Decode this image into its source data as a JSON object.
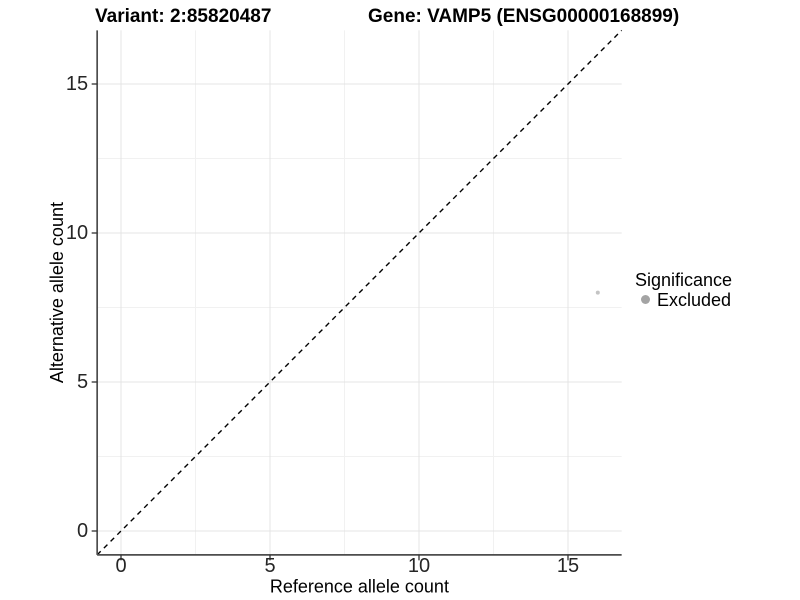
{
  "titles": {
    "variant": "Variant: 2:85820487",
    "gene": "Gene: VAMP5 (ENSG00000168899)"
  },
  "chart_data": {
    "type": "scatter",
    "titles": [
      "Variant: 2:85820487",
      "Gene: VAMP5 (ENSG00000168899)"
    ],
    "xlabel": "Reference allele count",
    "ylabel": "Alternative allele count",
    "xlim": [
      -0.8,
      16.8
    ],
    "ylim": [
      -0.8,
      16.8
    ],
    "x_ticks": [
      0,
      5,
      10,
      15
    ],
    "y_ticks": [
      0,
      5,
      10,
      15
    ],
    "x_minor_ticks": [
      2.5,
      7.5,
      12.5
    ],
    "y_minor_ticks": [
      2.5,
      7.5,
      12.5
    ],
    "grid": "major and minor gridlines on white background",
    "points": [
      {
        "x": 16,
        "y": 8,
        "significance": "Excluded",
        "color": "#c4c4c4",
        "radius": 2
      }
    ],
    "reference_line": {
      "kind": "identity y=x",
      "linetype": "dashed",
      "color": "#000000"
    },
    "legend": {
      "title": "Significance",
      "position": "right",
      "entries": [
        {
          "label": "Excluded",
          "color": "#a4a4a4"
        }
      ]
    },
    "colors": {
      "major_grid": "#e4e4e4",
      "minor_grid": "#f1f1f1",
      "axis_line": "#4d4d4d",
      "tick_mark": "#333333",
      "text": "#000000"
    }
  }
}
